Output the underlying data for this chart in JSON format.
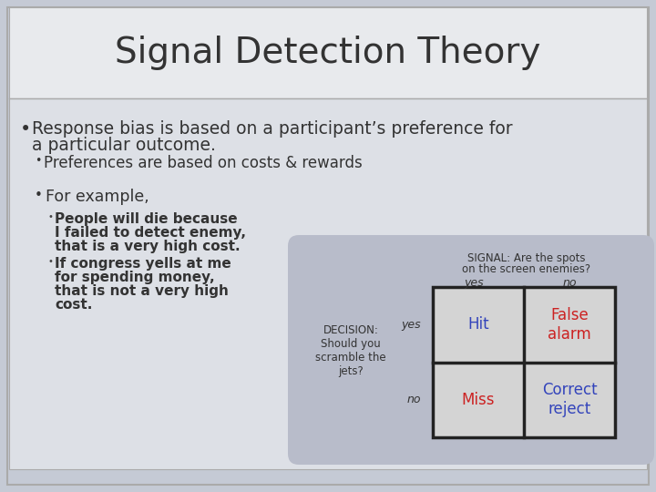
{
  "title": "Signal Detection Theory",
  "title_fontsize": 28,
  "title_color": "#333333",
  "title_bg": "#e8eaed",
  "body_bg": "#c5cad5",
  "slide_bg": "#c5cad5",
  "body_inner_bg": "#dde0e6",
  "bullet1_l1": "Response bias is based on a participant’s preference for",
  "bullet1_l2": "a particular outcome.",
  "bullet2": "Preferences are based on costs & rewards",
  "bullet3": "For example,",
  "sub1_line1": "People will die because",
  "sub1_line2": "I failed to detect enemy,",
  "sub1_line3": "that is a very high cost.",
  "sub2_line1": "If congress yells at me",
  "sub2_line2": "for spending money,",
  "sub2_line3": "that is not a very high",
  "sub2_line4": "cost.",
  "signal_label_l1": "SIGNAL: Are the spots",
  "signal_label_l2": "on the screen enemies?",
  "signal_yes": "yes",
  "signal_no": "no",
  "decision_label": "DECISION:\nShould you\nscramble the\njets?",
  "decision_yes": "yes",
  "decision_no": "no",
  "cell_hit": "Hit",
  "cell_false_alarm": "False\nalarm",
  "cell_miss": "Miss",
  "cell_correct": "Correct\nreject",
  "hit_color": "#3344bb",
  "false_alarm_color": "#cc2222",
  "miss_color": "#cc2222",
  "correct_color": "#3344bb",
  "table_bg": "#d4d4d4",
  "rounded_box_color": "#b8bcca",
  "text_dark": "#333333",
  "text_gray": "#444444"
}
